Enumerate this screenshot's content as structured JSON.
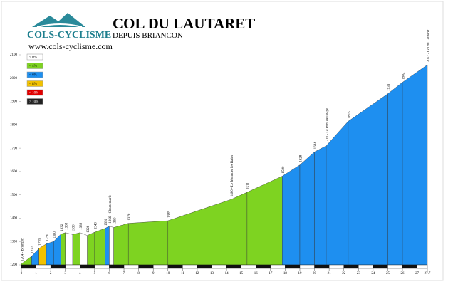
{
  "header": {
    "logo": "COLS-CYCLISME",
    "title": "COL DU LAUTARET",
    "subtitle": "DEPUIS BRIANCON",
    "url": "www.cols-cyclisme.com"
  },
  "legend": [
    {
      "label": "< 0%",
      "color": "#ffffff",
      "text_color": "#000000"
    },
    {
      "label": "< 4%",
      "color": "#7ed321",
      "text_color": "#000000"
    },
    {
      "label": "< 6%",
      "color": "#1e8ff0",
      "text_color": "#000000"
    },
    {
      "label": "< 8%",
      "color": "#f2c200",
      "text_color": "#000000"
    },
    {
      "label": "< 10%",
      "color": "#e00000",
      "text_color": "#ffffff"
    },
    {
      "label": "> 10%",
      "color": "#222222",
      "text_color": "#ffffff"
    }
  ],
  "chart_data": {
    "type": "profile",
    "x": [
      0,
      0.7,
      1.2,
      1.7,
      2.2,
      2.7,
      3,
      3.5,
      4,
      4.5,
      5,
      5.7,
      6,
      6.3,
      7.3,
      10,
      14.3,
      15.4,
      17.8,
      19,
      20,
      20.8,
      22.3,
      25,
      26,
      27.7
    ],
    "values": [
      1204,
      1237,
      1270,
      1290,
      1300,
      1332,
      1338,
      1330,
      1338,
      1326,
      1340,
      1356,
      1366,
      1360,
      1378,
      1389,
      1480,
      1511,
      1580,
      1628,
      1684,
      1710,
      1815,
      1933,
      1982,
      2057
    ],
    "point_labels": [
      "1204 - Briançon",
      "1237",
      "1270",
      "1290",
      "1300",
      "1332",
      "1338",
      "1330",
      "1338",
      "1326",
      "1340",
      "1356",
      "1366 - Chantemerle",
      "1360",
      "1378",
      "1389",
      "1480 - Le Monetier les Bains",
      "1511",
      "1580",
      "1628",
      "1684",
      "1710 - Le Pont de l'Alpe",
      "1815",
      "1933",
      "1982",
      "2057 - Col du Lautaret"
    ],
    "segment_colors": [
      "#7ed321",
      "#1e8ff0",
      "#f2c200",
      "#1e8ff0",
      "#1e8ff0",
      "#7ed321",
      "#ffffff",
      "#7ed321",
      "#ffffff",
      "#7ed321",
      "#7ed321",
      "#1e8ff0",
      "#ffffff",
      "#7ed321",
      "#7ed321",
      "#7ed321",
      "#7ed321",
      "#7ed321",
      "#1e8ff0",
      "#1e8ff0",
      "#1e8ff0",
      "#1e8ff0",
      "#1e8ff0",
      "#1e8ff0",
      "#1e8ff0"
    ],
    "xlim": [
      0,
      27.7
    ],
    "xticks": [
      0,
      1,
      2,
      3,
      4,
      5,
      6,
      7,
      8,
      9,
      10,
      11,
      12,
      13,
      14,
      15,
      16,
      17,
      18,
      19,
      20,
      21,
      22,
      23,
      24,
      25,
      26,
      27,
      27.7
    ],
    "ylim": [
      1200,
      2100
    ],
    "yticks": [
      1200,
      1300,
      1400,
      1500,
      1600,
      1700,
      1800,
      1900,
      2000,
      2100
    ]
  }
}
